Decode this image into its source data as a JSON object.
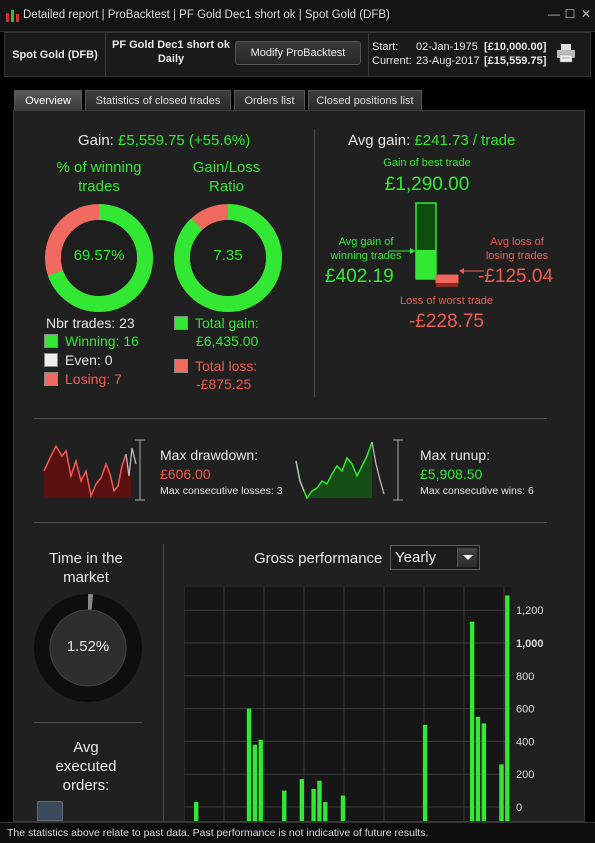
{
  "window": {
    "title": "Detailed report | ProBacktest | PF Gold Dec1 short ok | Spot Gold (DFB)",
    "minimize": "—",
    "maximize": "☐",
    "close": "✕"
  },
  "header": {
    "instrument": "Spot Gold (DFB)",
    "strategy_name": "PF Gold Dec1 short ok",
    "strategy_period": "Daily",
    "modify_button": "Modify ProBacktest",
    "start_label": "Start:",
    "start_date": "02-Jan-1975",
    "start_value": "[£10,000.00]",
    "current_label": "Current:",
    "current_date": "23-Aug-2017",
    "current_value": "[£15,559.75]"
  },
  "tabs": [
    "Overview",
    "Statistics of closed trades",
    "Orders list",
    "Closed positions list"
  ],
  "overview": {
    "gain_label": "Gain:",
    "gain_value": "£5,559.75 (+55.6%)",
    "winning_title_1": "% of winning",
    "winning_title_2": "trades",
    "winning_pct": "69.57%",
    "winning_fraction": 0.6957,
    "ratio_title_1": "Gain/Loss",
    "ratio_title_2": "Ratio",
    "ratio_value": "7.35",
    "ratio_fraction": 0.88,
    "nbr_trades": "Nbr trades: 23",
    "winning": "Winning: 16",
    "even": "Even: 0",
    "losing": "Losing: 7",
    "total_gain_label": "Total gain:",
    "total_gain_value": "£6,435.00",
    "total_loss_label": "Total loss:",
    "total_loss_value": "-£875.25",
    "avg_gain_label": "Avg gain:",
    "avg_gain_value": "£241.73 / trade",
    "best_trade_label": "Gain of best trade",
    "best_trade_value": "£1,290.00",
    "avg_win_label_1": "Avg gain of",
    "avg_win_label_2": "winning trades",
    "avg_win_value": "£402.19",
    "avg_loss_label_1": "Avg loss of",
    "avg_loss_label_2": "losing trades",
    "avg_loss_value": "-£125.04",
    "worst_trade_label": "Loss of worst trade",
    "worst_trade_value": "-£228.75",
    "max_drawdown_label": "Max drawdown:",
    "max_drawdown_value": "£606.00",
    "max_consec_losses": "Max consecutive losses: 3",
    "max_runup_label": "Max runup:",
    "max_runup_value": "£5,908.50",
    "max_consec_wins": "Max consecutive wins: 6",
    "time_in_market_1": "Time in the",
    "time_in_market_2": "market",
    "time_in_market_value": "1.52%",
    "time_in_market_fraction": 0.0152,
    "avg_orders_1": "Avg",
    "avg_orders_2": "executed",
    "avg_orders_3": "orders:",
    "gross_perf_label": "Gross performance",
    "period_select": "Yearly"
  },
  "chart_data": {
    "type": "bar",
    "title": "Gross performance",
    "yticks": [
      "0",
      "200",
      "400",
      "600",
      "800",
      "1,000",
      "1,200"
    ],
    "ylim": [
      0,
      1200
    ],
    "values": [
      30,
      0,
      0,
      0,
      0,
      0,
      0,
      0,
      0,
      600,
      380,
      410,
      0,
      0,
      0,
      100,
      0,
      0,
      170,
      0,
      110,
      160,
      30,
      0,
      0,
      70,
      0,
      0,
      0,
      0,
      0,
      0,
      0,
      0,
      0,
      0,
      0,
      0,
      0,
      500,
      0,
      0,
      0,
      0,
      0,
      0,
      0,
      1130,
      550,
      510,
      0,
      0,
      260,
      1290
    ],
    "bar_color": "#33e833"
  },
  "footer": "The statistics above relate to past data. Past performance is not indicative of future results.",
  "colors": {
    "green": "#33e833",
    "red": "#f05a50",
    "background": "#202020"
  }
}
